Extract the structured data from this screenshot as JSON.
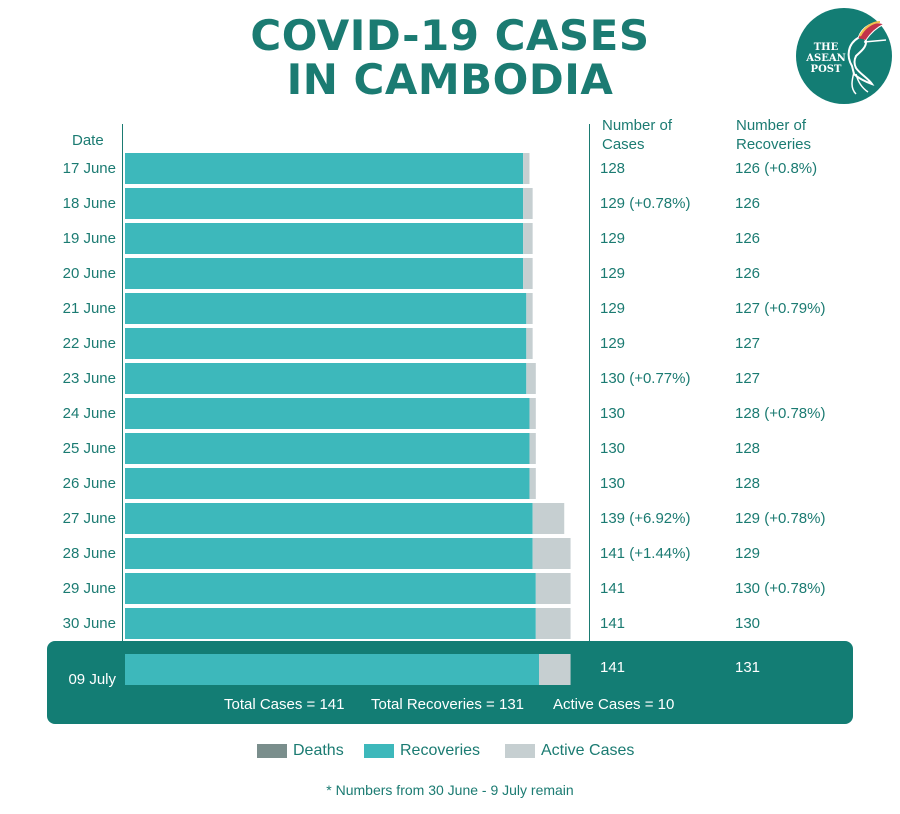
{
  "title_line1": "COVID-19 CASES",
  "title_line2": "IN CAMBODIA",
  "logo": {
    "icon": "hummingbird-icon",
    "line1": "THE",
    "line2": "ASEAN",
    "line3": "POST"
  },
  "headers": {
    "date": "Date",
    "cases_line1": "Number of",
    "cases_line2": "Cases",
    "recoveries_line1": "Number of",
    "recoveries_line2": "Recoveries"
  },
  "colors": {
    "recoveries": "#3db8bb",
    "active": "#c6cfd1",
    "deaths": "#7a8e8c",
    "highlight": "#137d74",
    "text": "#1b7b72"
  },
  "chart_data": {
    "type": "bar",
    "orientation": "horizontal",
    "stacked": true,
    "categories": [
      "17 June",
      "18 June",
      "19 June",
      "20 June",
      "21 June",
      "22 June",
      "23 June",
      "24 June",
      "25 June",
      "26 June",
      "27 June",
      "28 June",
      "29 June",
      "30 June",
      "09 July"
    ],
    "series": [
      {
        "name": "Deaths",
        "values": [
          0,
          0,
          0,
          0,
          0,
          0,
          0,
          0,
          0,
          0,
          0,
          0,
          0,
          0,
          0
        ]
      },
      {
        "name": "Recoveries",
        "values": [
          126,
          126,
          126,
          126,
          127,
          127,
          127,
          128,
          128,
          128,
          129,
          129,
          130,
          130,
          131
        ]
      },
      {
        "name": "Active Cases",
        "values": [
          2,
          3,
          3,
          3,
          2,
          2,
          3,
          2,
          2,
          2,
          10,
          12,
          11,
          11,
          10
        ]
      }
    ],
    "cases_labels": [
      "128",
      "129 (+0.78%)",
      "129",
      "129",
      "129",
      "129",
      "130 (+0.77%)",
      "130",
      "130",
      "130",
      "139 (+6.92%)",
      "141 (+1.44%)",
      "141",
      "141",
      "141"
    ],
    "recoveries_labels": [
      "126 (+0.8%)",
      "126",
      "126",
      "126",
      "127 (+0.79%)",
      "127",
      "127",
      "128 (+0.78%)",
      "128",
      "128",
      "129 (+0.78%)",
      "129",
      "130 (+0.78%)",
      "130",
      "131"
    ],
    "highlight_index": 14,
    "totals": {
      "total_cases": "Total Cases = 141",
      "total_recoveries": "Total Recoveries = 131",
      "active_cases": "Active Cases = 10"
    },
    "legend": [
      "Deaths",
      "Recoveries",
      "Active Cases"
    ],
    "legend_position": "bottom",
    "note": "* Numbers from 30 June - 9 July remain",
    "xlim": [
      0,
      141
    ],
    "grid": false
  }
}
